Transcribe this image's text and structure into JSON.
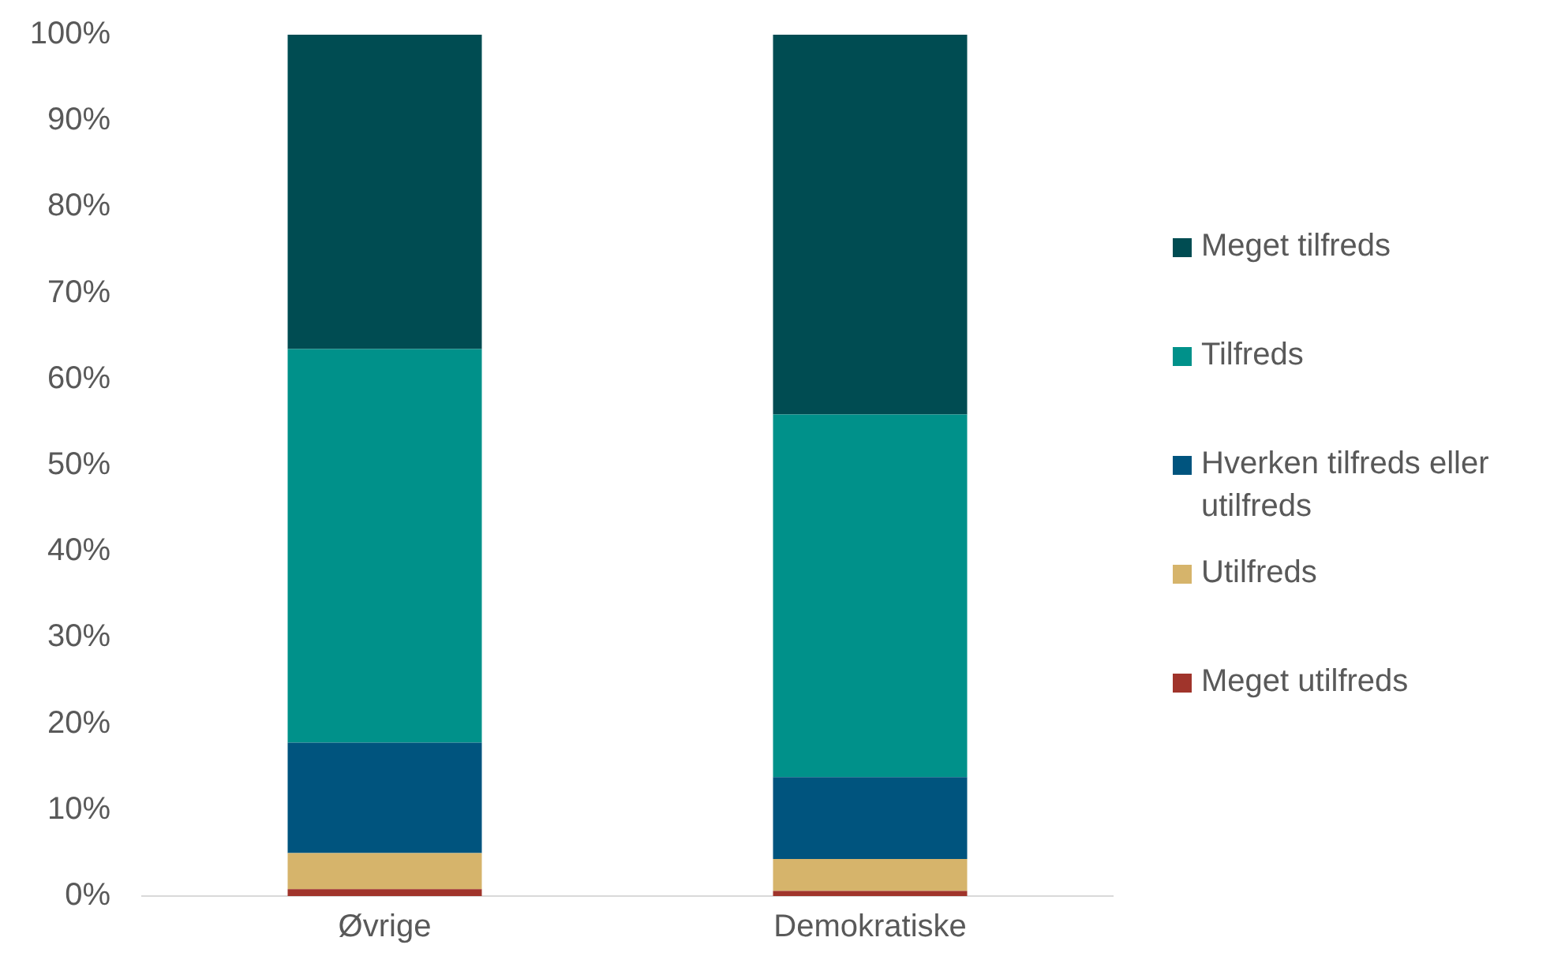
{
  "chart_data": {
    "type": "bar",
    "stacked": true,
    "categories": [
      "Øvrige",
      "Demokratiske"
    ],
    "series": [
      {
        "name": "Meget utilfreds",
        "color": "#a0342b",
        "values": [
          0.8,
          0.6
        ]
      },
      {
        "name": "Utilfreds",
        "color": "#d6b46b",
        "values": [
          4.2,
          3.7
        ]
      },
      {
        "name": "Hverken tilfreds eller utilfreds",
        "color": "#00547e",
        "values": [
          12.8,
          9.5
        ]
      },
      {
        "name": "Tilfreds",
        "color": "#00918a",
        "values": [
          45.7,
          42.1
        ]
      },
      {
        "name": "Meget tilfreds",
        "color": "#004c52",
        "values": [
          36.5,
          44.1
        ]
      }
    ],
    "ylim": [
      0,
      100
    ],
    "yticks": [
      {
        "value": 0,
        "label": "0%"
      },
      {
        "value": 10,
        "label": "10%"
      },
      {
        "value": 20,
        "label": "20%"
      },
      {
        "value": 30,
        "label": "30%"
      },
      {
        "value": 40,
        "label": "40%"
      },
      {
        "value": 50,
        "label": "50%"
      },
      {
        "value": 60,
        "label": "60%"
      },
      {
        "value": 70,
        "label": "70%"
      },
      {
        "value": 80,
        "label": "80%"
      },
      {
        "value": 90,
        "label": "90%"
      },
      {
        "value": 100,
        "label": "100%"
      }
    ],
    "grid": false,
    "legend": "right"
  }
}
